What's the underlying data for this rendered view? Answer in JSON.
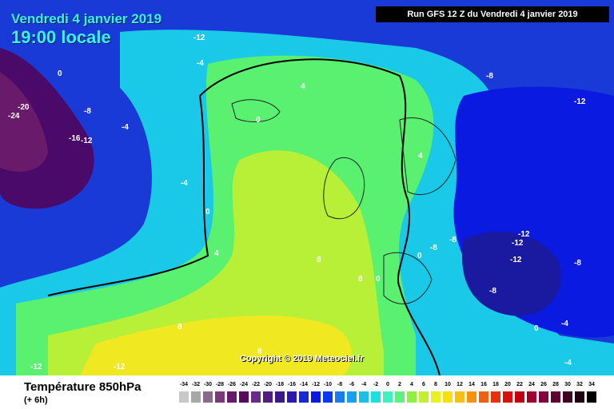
{
  "header": {
    "date_label": "Vendredi 4 janvier 2019",
    "time_label": "19:00 locale",
    "run_label": "Run GFS 12 Z du Vendredi 4 janvier 2019"
  },
  "map": {
    "copyright": "Copyright © 2019 Meteociel.fr",
    "isotherm_labels": [
      "-12",
      "-8",
      "-4",
      "0",
      "4",
      "8",
      "-16",
      "-20",
      "-24"
    ]
  },
  "legend": {
    "parameter": "Température 850hPa",
    "step": "(+ 6h)",
    "ticks": [
      "-34",
      "-32",
      "-30",
      "-28",
      "-26",
      "-24",
      "-22",
      "-20",
      "-18",
      "-16",
      "-14",
      "-12",
      "-10",
      "-8",
      "-6",
      "-4",
      "-2",
      "0",
      "2",
      "4",
      "6",
      "8",
      "10",
      "12",
      "14",
      "16",
      "18",
      "20",
      "22",
      "24",
      "26",
      "28",
      "30",
      "32",
      "34"
    ],
    "colors": [
      "#c8c8c8",
      "#a8a8a8",
      "#8a6a8a",
      "#7a3a7a",
      "#6a1a6a",
      "#5a0a5a",
      "#6a2a8a",
      "#502080",
      "#3a1a8a",
      "#2a1ab0",
      "#1a2ad0",
      "#0a1ae0",
      "#0a3af0",
      "#1a7af0",
      "#1aa0f0",
      "#1ac0e8",
      "#1ae0e0",
      "#40f0c0",
      "#60f080",
      "#90f040",
      "#c0f030",
      "#e8f020",
      "#f8e010",
      "#f8c010",
      "#f89010",
      "#f06010",
      "#e83010",
      "#d81010",
      "#c00010",
      "#a00030",
      "#800040",
      "#600030",
      "#400020",
      "#200010",
      "#000000"
    ]
  }
}
